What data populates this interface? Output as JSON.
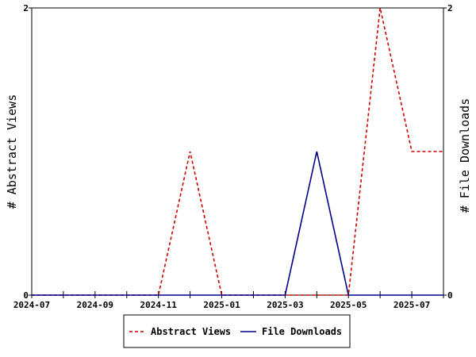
{
  "chart_data": {
    "type": "line",
    "title": "",
    "xlabel": "",
    "ylabel_left": "# Abstract Views",
    "ylabel_right": "# File Downloads",
    "x": [
      "2024-07",
      "2024-08",
      "2024-09",
      "2024-10",
      "2024-11",
      "2024-12",
      "2025-01",
      "2025-02",
      "2025-03",
      "2025-04",
      "2025-05",
      "2025-06",
      "2025-07",
      "2025-08"
    ],
    "x_tick_labels": [
      "2024-07",
      "2024-09",
      "2024-11",
      "2025-01",
      "2025-03",
      "2025-05",
      "2025-07"
    ],
    "ylim_left": [
      0,
      2
    ],
    "ylim_right": [
      0,
      2
    ],
    "y_tick_labels_left": [
      "0",
      "2"
    ],
    "y_tick_labels_right": [
      "0",
      "2"
    ],
    "grid": false,
    "legend_position": "bottom-center",
    "series": [
      {
        "name": "Abstract Views",
        "axis": "left",
        "color": "#cc0000",
        "style": "dashed",
        "values": [
          0,
          0,
          0,
          0,
          0,
          1,
          0,
          0,
          0,
          0,
          0,
          2,
          1,
          1
        ]
      },
      {
        "name": "File Downloads",
        "axis": "right",
        "color": "#00008b",
        "style": "solid",
        "values": [
          0,
          0,
          0,
          0,
          0,
          0,
          0,
          0,
          0,
          1,
          0,
          0,
          0,
          0
        ]
      }
    ]
  }
}
